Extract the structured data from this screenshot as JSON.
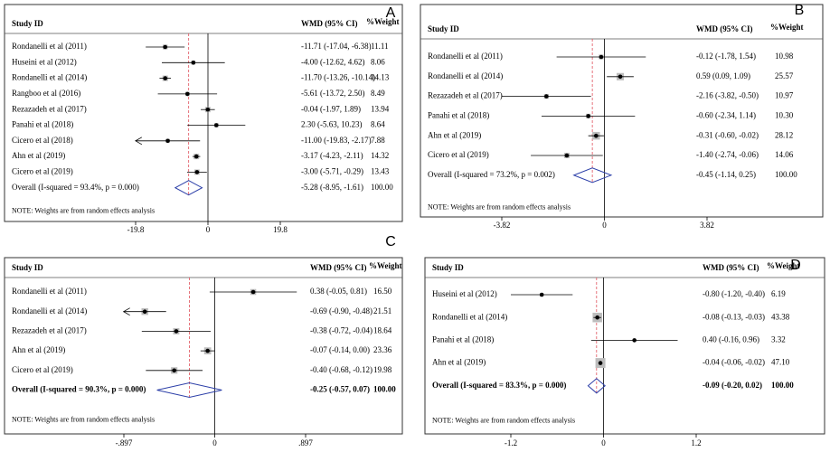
{
  "chart_data": [
    {
      "type": "forest",
      "panel": "A",
      "headers": [
        "Study ID",
        "WMD (95% CI)",
        "%Weight"
      ],
      "studies": [
        "Rondanelli et al (2011)",
        "Huseini et al (2012)",
        "Rondanelli et al (2014)",
        "Rangboo et al (2016)",
        "Rezazadeh et al (2017)",
        "Panahi et al (2018)",
        "Cicero et al (2018)",
        "Ahn et al (2019)",
        "Cicero et al (2019)"
      ],
      "values": [
        -11.71,
        -4.0,
        -11.7,
        -5.61,
        -0.04,
        2.3,
        -11.0,
        -3.17,
        -3.0
      ],
      "lower": [
        -17.04,
        -12.62,
        -13.26,
        -13.72,
        -1.97,
        -5.63,
        -19.83,
        -4.23,
        -5.71
      ],
      "upper": [
        -6.38,
        4.62,
        -10.14,
        2.5,
        1.89,
        10.23,
        -2.17,
        -2.11,
        -0.29
      ],
      "ci_labels": [
        "-11.71 (-17.04, -6.38)",
        "-4.00 (-12.62, 4.62)",
        "-11.70 (-13.26, -10.14)",
        "-5.61 (-13.72, 2.50)",
        "-0.04 (-1.97, 1.89)",
        "2.30 (-5.63, 10.23)",
        "-11.00 (-19.83, -2.17)",
        "-3.17 (-4.23, -2.11)",
        "-3.00 (-5.71, -0.29)"
      ],
      "weights": [
        11.11,
        8.06,
        14.13,
        8.49,
        13.94,
        8.64,
        7.88,
        14.32,
        13.43
      ],
      "weight_labels": [
        "11.11",
        "8.06",
        "14.13",
        "8.49",
        "13.94",
        "8.64",
        "7.88",
        "14.32",
        "13.43"
      ],
      "overall": {
        "name": "Overall (I-squared = 93.4%, p = 0.000)",
        "value": -5.28,
        "lower": -8.95,
        "upper": -1.61,
        "ci_label": "-5.28 (-8.95, -1.61)",
        "weight": 100,
        "weight_label": "100.00"
      },
      "note": "NOTE: Weights are from random effects analysis",
      "xlim": [
        -19.8,
        19.8
      ],
      "xticks": [
        -19.8,
        0,
        19.8
      ],
      "bold_overall": false
    },
    {
      "type": "forest",
      "panel": "B",
      "headers": [
        "Study ID",
        "WMD (95% CI)",
        "%Weight"
      ],
      "studies": [
        "Rondanelli et al (2011)",
        "Rondanelli et al (2014)",
        "Rezazadeh et al (2017)",
        "Panahi et al (2018)",
        "Ahn et al (2019)",
        "Cicero et al (2019)"
      ],
      "values": [
        -0.12,
        0.59,
        -2.16,
        -0.6,
        -0.31,
        -1.4
      ],
      "lower": [
        -1.78,
        0.09,
        -3.82,
        -2.34,
        -0.6,
        -2.74
      ],
      "upper": [
        1.54,
        1.09,
        -0.5,
        1.14,
        -0.02,
        -0.06
      ],
      "ci_labels": [
        "-0.12 (-1.78, 1.54)",
        "0.59 (0.09, 1.09)",
        "-2.16 (-3.82, -0.50)",
        "-0.60 (-2.34, 1.14)",
        "-0.31 (-0.60, -0.02)",
        "-1.40 (-2.74, -0.06)"
      ],
      "weights": [
        10.98,
        25.57,
        10.97,
        10.3,
        28.12,
        14.06
      ],
      "weight_labels": [
        "10.98",
        "25.57",
        "10.97",
        "10.30",
        "28.12",
        "14.06"
      ],
      "overall": {
        "name": "Overall (I-squared = 73.2%, p = 0.002)",
        "value": -0.45,
        "lower": -1.14,
        "upper": 0.25,
        "ci_label": "-0.45 (-1.14, 0.25)",
        "weight": 100,
        "weight_label": "100.00"
      },
      "note": "NOTE: Weights are from random effects analysis",
      "xlim": [
        -3.82,
        3.82
      ],
      "xticks": [
        -3.82,
        0,
        3.82
      ],
      "bold_overall": false
    },
    {
      "type": "forest",
      "panel": "C",
      "headers": [
        "Study ID",
        "WMD (95% CI)",
        "%Weight"
      ],
      "studies": [
        "Rondanelli et al (2011)",
        "Rondanelli et al (2014)",
        "Rezazadeh et al (2017)",
        "Ahn et al (2019)",
        "Cicero et al (2019)"
      ],
      "values": [
        0.38,
        -0.69,
        -0.38,
        -0.07,
        -0.4
      ],
      "lower": [
        -0.05,
        -0.9,
        -0.72,
        -0.14,
        -0.68
      ],
      "upper": [
        0.81,
        -0.48,
        -0.04,
        0.0,
        -0.12
      ],
      "ci_labels": [
        "0.38 (-0.05, 0.81)",
        "-0.69 (-0.90, -0.48)",
        "-0.38 (-0.72, -0.04)",
        "-0.07 (-0.14, 0.00)",
        "-0.40 (-0.68, -0.12)"
      ],
      "weights": [
        16.5,
        21.51,
        18.64,
        23.36,
        19.98
      ],
      "weight_labels": [
        "16.50",
        "21.51",
        "18.64",
        "23.36",
        "19.98"
      ],
      "overall": {
        "name": "Overall (I-squared = 90.3%, p = 0.000)",
        "value": -0.25,
        "lower": -0.57,
        "upper": 0.07,
        "ci_label": "-0.25 (-0.57, 0.07)",
        "weight": 100,
        "weight_label": "100.00"
      },
      "note": "NOTE: Weights are from random effects analysis",
      "xlim": [
        -0.897,
        0.897
      ],
      "xticks": [
        {
          "value": -0.897,
          "label": "-.897"
        },
        0,
        {
          "value": 0.897,
          "label": ".897"
        }
      ],
      "bold_overall": true
    },
    {
      "type": "forest",
      "panel": "D",
      "headers": [
        "Study ID",
        "WMD (95% CI)",
        "%Weight"
      ],
      "studies": [
        "Huseini et al (2012)",
        "Rondanelli et al (2014)",
        "Panahi et al (2018)",
        "Ahn et al (2019)"
      ],
      "values": [
        -0.8,
        -0.08,
        0.4,
        -0.04
      ],
      "lower": [
        -1.2,
        -0.13,
        -0.16,
        -0.06
      ],
      "upper": [
        -0.4,
        -0.03,
        0.96,
        -0.02
      ],
      "ci_labels": [
        "-0.80 (-1.20, -0.40)",
        "-0.08 (-0.13, -0.03)",
        "0.40 (-0.16, 0.96)",
        "-0.04 (-0.06, -0.02)"
      ],
      "weights": [
        6.19,
        43.38,
        3.32,
        47.1
      ],
      "weight_labels": [
        "6.19",
        "43.38",
        "3.32",
        "47.10"
      ],
      "overall": {
        "name": "Overall (I-squared = 83.3%, p = 0.000)",
        "value": -0.09,
        "lower": -0.2,
        "upper": 0.02,
        "ci_label": "-0.09 (-0.20, 0.02)",
        "weight": 100,
        "weight_label": "100.00"
      },
      "note": "NOTE: Weights are from random effects analysis",
      "xlim": [
        -1.2,
        1.2
      ],
      "xticks": [
        -1.2,
        0,
        1.2
      ],
      "bold_overall": true
    }
  ]
}
